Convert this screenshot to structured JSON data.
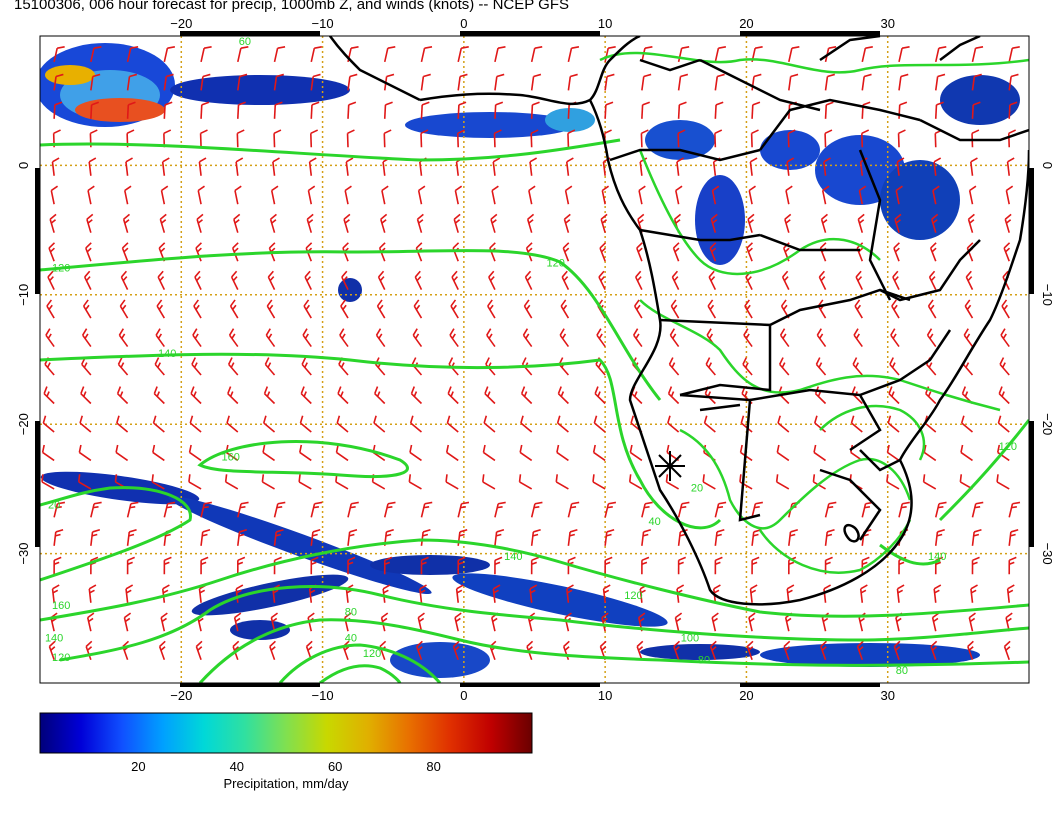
{
  "title": "15100306, 006 hour forecast for precip, 1000mb Z, and winds (knots) -- NCEP GFS",
  "map": {
    "lon_range": [
      -30,
      40
    ],
    "lat_range": [
      -40,
      10
    ],
    "lon_ticks": [
      -20,
      -10,
      0,
      10,
      20,
      30
    ],
    "lat_ticks": [
      0,
      -10,
      -20,
      -30
    ],
    "lon_tick_labels": [
      "−20",
      "−10",
      "0",
      "10",
      "20",
      "30"
    ],
    "lat_tick_labels": [
      "0",
      "−10",
      "−20",
      "−30"
    ],
    "grid": true,
    "gridline_color": "#d4a017",
    "contour_color": "#2bd52b",
    "barb_color": "#e01818",
    "coastline_color": "#000000",
    "station_marker": {
      "lon": 15,
      "lat": -24
    }
  },
  "contours": [
    {
      "label": "120",
      "lon": -28.5,
      "lat": -8.2
    },
    {
      "label": "120",
      "lon": 6.5,
      "lat": -7.8
    },
    {
      "label": "140",
      "lon": -21,
      "lat": -14.8
    },
    {
      "label": "160",
      "lon": -16.5,
      "lat": -22.8
    },
    {
      "label": "160",
      "lon": -28.5,
      "lat": -34.3
    },
    {
      "label": "140",
      "lon": -29,
      "lat": -36.8
    },
    {
      "label": "120",
      "lon": -28.5,
      "lat": -38.3
    },
    {
      "label": "140",
      "lon": 3.5,
      "lat": -30.5
    },
    {
      "label": "80",
      "lon": -8,
      "lat": -34.8
    },
    {
      "label": "40",
      "lon": -8,
      "lat": -36.8
    },
    {
      "label": "120",
      "lon": -6.5,
      "lat": -38
    },
    {
      "label": "120",
      "lon": 12,
      "lat": -33.5
    },
    {
      "label": "100",
      "lon": 16,
      "lat": -36.8
    },
    {
      "label": "80",
      "lon": 17,
      "lat": -38.5
    },
    {
      "label": "80",
      "lon": 31,
      "lat": -39.3
    },
    {
      "label": "140",
      "lon": 33.5,
      "lat": -30.5
    },
    {
      "label": "120",
      "lon": 38.5,
      "lat": -22
    },
    {
      "label": "60",
      "lon": -15.5,
      "lat": 9.3
    },
    {
      "label": "20",
      "lon": 16.5,
      "lat": -25.2
    },
    {
      "label": "40",
      "lon": 13.5,
      "lat": -27.8
    },
    {
      "label": "20",
      "lon": -29,
      "lat": -26.5
    }
  ],
  "colorbar": {
    "min": 0,
    "max": 100,
    "ticks": [
      20,
      40,
      60,
      80
    ],
    "tick_labels": [
      "20",
      "40",
      "60",
      "80"
    ],
    "label": "Precipitation, mm/day",
    "colors": [
      "#00007a",
      "#0000d8",
      "#1050ff",
      "#00a0ff",
      "#00d8d8",
      "#30e0a0",
      "#80e050",
      "#c8d800",
      "#e0b000",
      "#e87000",
      "#e03000",
      "#c00000",
      "#6a0000"
    ]
  }
}
